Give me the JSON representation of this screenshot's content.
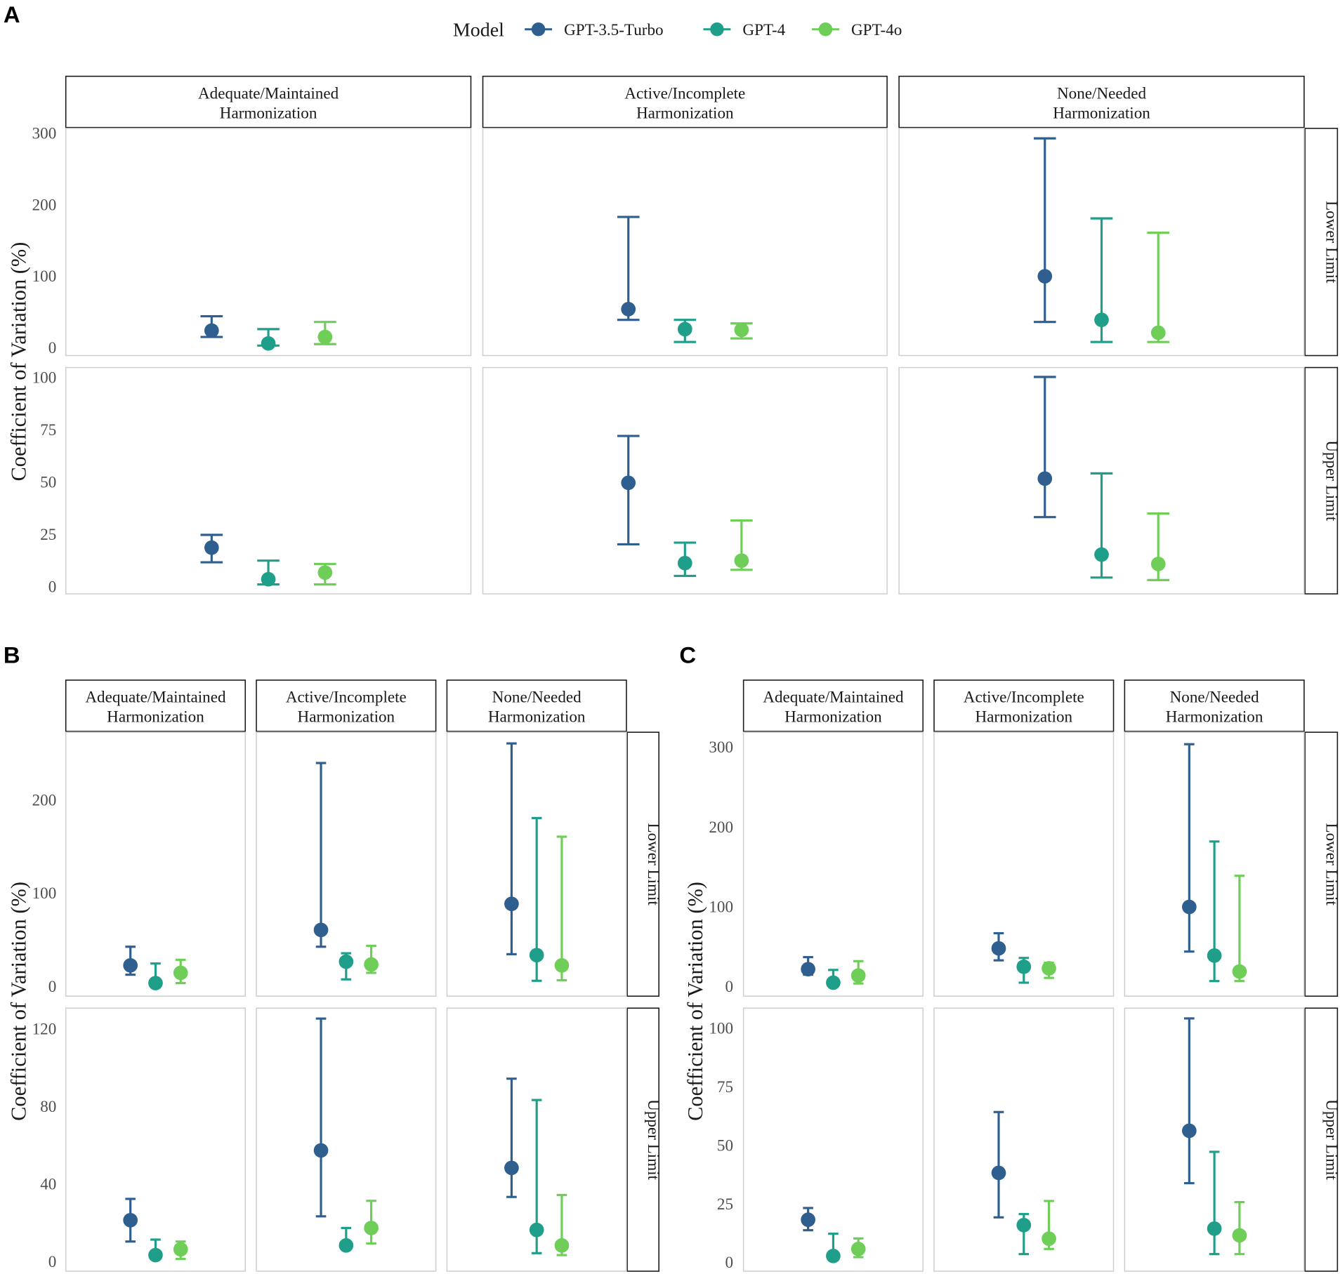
{
  "legend": {
    "title": "Model",
    "items": [
      {
        "label": "GPT-3.5-Turbo",
        "color": "#2f5f8e"
      },
      {
        "label": "GPT-4",
        "color": "#1f9e89"
      },
      {
        "label": "GPT-4o",
        "color": "#6ece58"
      }
    ]
  },
  "chart_data": [
    {
      "type": "errorbar",
      "panel_label": "A",
      "ylabel": "Coefficient of Variation (%)",
      "columns": [
        [
          "Adequate/Maintained",
          "Harmonization"
        ],
        [
          "Active/Incomplete",
          "Harmonization"
        ],
        [
          "None/Needed",
          "Harmonization"
        ]
      ],
      "series_order": [
        "GPT-3.5-Turbo",
        "GPT-4",
        "GPT-4o"
      ],
      "rows": [
        {
          "label": "Lower Limit",
          "ylim": [
            -12,
            306
          ],
          "ticks": [
            "0",
            "100",
            "200",
            "300"
          ],
          "values": [
            [
              [
                23,
                14,
                43
              ],
              [
                5,
                2,
                25
              ],
              [
                14,
                4,
                35
              ]
            ],
            [
              [
                53,
                38,
                182
              ],
              [
                25,
                7,
                38
              ],
              [
                24,
                12,
                33
              ]
            ],
            [
              [
                99,
                35,
                292
              ],
              [
                38,
                7,
                180
              ],
              [
                20,
                7,
                160
              ]
            ]
          ]
        },
        {
          "label": "Upper Limit",
          "ylim": [
            -3.7,
            104.5
          ],
          "ticks": [
            "0",
            "25",
            "50",
            "75",
            "100"
          ],
          "values": [
            [
              [
                18.4,
                11.4,
                24.5
              ],
              [
                3.3,
                0.8,
                12.2
              ],
              [
                6.5,
                0.8,
                10.6
              ]
            ],
            [
              [
                49.4,
                20,
                71.8
              ],
              [
                11,
                4.9,
                20.8
              ],
              [
                12.2,
                7.8,
                31.4
              ]
            ],
            [
              [
                51.4,
                33,
                100
              ],
              [
                15.1,
                4.1,
                53.9
              ],
              [
                10.6,
                2.9,
                34.7
              ]
            ]
          ]
        }
      ]
    },
    {
      "type": "errorbar",
      "panel_label": "B",
      "ylabel": "Coefficient of Variation (%)",
      "columns": [
        [
          "Adequate/Maintained",
          "Harmonization"
        ],
        [
          "Active/Incomplete",
          "Harmonization"
        ],
        [
          "None/Needed",
          "Harmonization"
        ]
      ],
      "series_order": [
        "GPT-3.5-Turbo",
        "GPT-4",
        "GPT-4o"
      ],
      "rows": [
        {
          "label": "Lower Limit",
          "ylim": [
            -11,
            272
          ],
          "ticks": [
            "0",
            "100",
            "200"
          ],
          "values": [
            [
              [
                22,
                12,
                42
              ],
              [
                3,
                0,
                24
              ],
              [
                14,
                3,
                28
              ]
            ],
            [
              [
                60,
                42,
                239
              ],
              [
                26,
                7,
                35
              ],
              [
                23,
                14,
                43
              ]
            ],
            [
              [
                88,
                34,
                260
              ],
              [
                33,
                5.5,
                180
              ],
              [
                22,
                6,
                160
              ]
            ]
          ]
        },
        {
          "label": "Upper Limit",
          "ylim": [
            -5.3,
            130.4
          ],
          "ticks": [
            "0",
            "40",
            "80",
            "120"
          ],
          "values": [
            [
              [
                21,
                10,
                32
              ],
              [
                3,
                1,
                11
              ],
              [
                6,
                1,
                10
              ]
            ],
            [
              [
                57,
                23,
                125
              ],
              [
                8,
                7,
                17
              ],
              [
                17,
                9,
                31
              ]
            ],
            [
              [
                48,
                33,
                94
              ],
              [
                16,
                4,
                83
              ],
              [
                8,
                3,
                34
              ]
            ]
          ]
        }
      ]
    },
    {
      "type": "errorbar",
      "panel_label": "C",
      "ylabel": "Coefficient of Variation (%)",
      "columns": [
        [
          "Adequate/Maintained",
          "Harmonization"
        ],
        [
          "Active/Incomplete",
          "Harmonization"
        ],
        [
          "None/Needed",
          "Harmonization"
        ]
      ],
      "series_order": [
        "GPT-3.5-Turbo",
        "GPT-4",
        "GPT-4o"
      ],
      "rows": [
        {
          "label": "Lower Limit",
          "ylim": [
            -12.9,
            318
          ],
          "ticks": [
            "0",
            "100",
            "200",
            "300"
          ],
          "values": [
            [
              [
                21,
                14,
                36
              ],
              [
                4,
                2,
                20
              ],
              [
                13,
                3,
                31
              ]
            ],
            [
              [
                47,
                32,
                66
              ],
              [
                24,
                4,
                35
              ],
              [
                22,
                10,
                29
              ]
            ],
            [
              [
                99,
                43,
                303
              ],
              [
                38,
                6,
                181
              ],
              [
                18,
                6,
                138
              ]
            ]
          ]
        },
        {
          "label": "Upper Limit",
          "ylim": [
            -4,
            108.4
          ],
          "ticks": [
            "0",
            "25",
            "50",
            "75",
            "100"
          ],
          "values": [
            [
              [
                18,
                13.5,
                23
              ],
              [
                2.5,
                3,
                12
              ],
              [
                5.5,
                2,
                10
              ]
            ],
            [
              [
                38,
                19,
                64
              ],
              [
                15.7,
                3.3,
                20.4
              ],
              [
                9.9,
                5.5,
                26
              ]
            ],
            [
              [
                56,
                33.6,
                104
              ],
              [
                14.2,
                3.3,
                47
              ],
              [
                11.3,
                3.3,
                25.5
              ]
            ]
          ]
        }
      ]
    }
  ]
}
